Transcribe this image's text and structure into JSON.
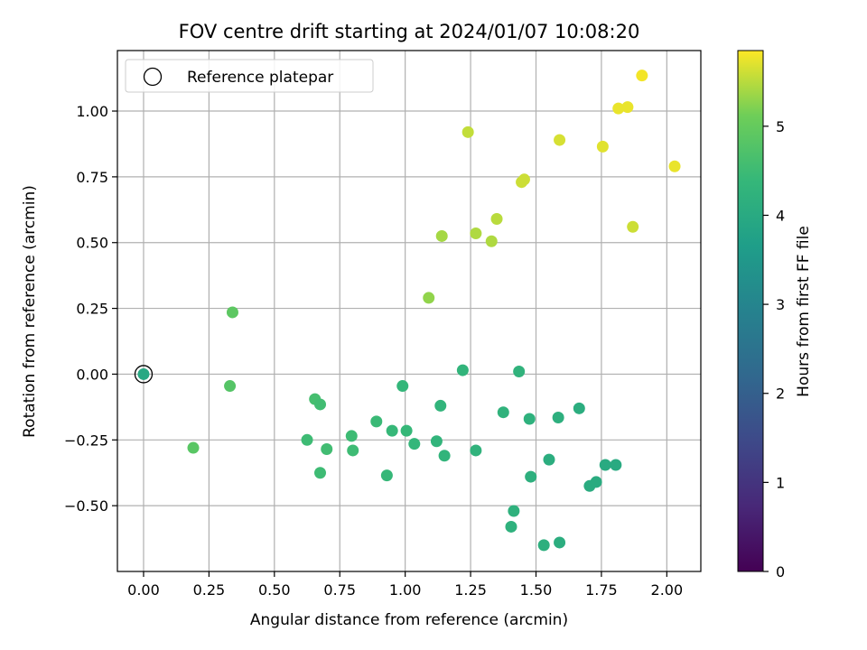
{
  "chart_data": {
    "type": "scatter",
    "title": "FOV centre drift starting at 2024/01/07 10:08:20",
    "xlabel": "Angular distance from reference (arcmin)",
    "ylabel": "Rotation from reference (arcmin)",
    "xlim": [
      -0.1,
      2.13
    ],
    "ylim": [
      -0.75,
      1.23
    ],
    "x_ticks": [
      "0.00",
      "0.25",
      "0.50",
      "0.75",
      "1.00",
      "1.25",
      "1.50",
      "1.75",
      "2.00"
    ],
    "x_tick_values": [
      0,
      0.25,
      0.5,
      0.75,
      1.0,
      1.25,
      1.5,
      1.75,
      2.0
    ],
    "y_ticks": [
      "1.00",
      "0.75",
      "0.50",
      "0.25",
      "0.00",
      "−0.25",
      "−0.50"
    ],
    "y_tick_values": [
      1.0,
      0.75,
      0.5,
      0.25,
      0.0,
      -0.25,
      -0.5
    ],
    "grid": true,
    "legend": {
      "position": "top-left",
      "entries": [
        "Reference platepar"
      ]
    },
    "reference_point": {
      "x": 0.0,
      "y": 0.0,
      "c": 3.95
    },
    "colorbar": {
      "label": "Hours from first FF file",
      "range": [
        0,
        5.85
      ],
      "ticks": [
        "0",
        "1",
        "2",
        "3",
        "4",
        "5"
      ],
      "tick_values": [
        0,
        1,
        2,
        3,
        4,
        5
      ],
      "colormap": "viridis",
      "colors": [
        "#440154",
        "#3b528b",
        "#21918c",
        "#5ec962",
        "#fde725"
      ]
    },
    "points": [
      {
        "x": 0.19,
        "y": -0.28,
        "c": 4.85
      },
      {
        "x": 0.33,
        "y": -0.045,
        "c": 4.8
      },
      {
        "x": 0.34,
        "y": 0.235,
        "c": 4.9
      },
      {
        "x": 0.625,
        "y": -0.25,
        "c": 4.5
      },
      {
        "x": 0.655,
        "y": -0.095,
        "c": 4.6
      },
      {
        "x": 0.675,
        "y": -0.115,
        "c": 4.55
      },
      {
        "x": 0.675,
        "y": -0.375,
        "c": 4.5
      },
      {
        "x": 0.7,
        "y": -0.285,
        "c": 4.55
      },
      {
        "x": 0.795,
        "y": -0.235,
        "c": 4.5
      },
      {
        "x": 0.8,
        "y": -0.29,
        "c": 4.5
      },
      {
        "x": 0.89,
        "y": -0.18,
        "c": 4.45
      },
      {
        "x": 0.93,
        "y": -0.385,
        "c": 4.4
      },
      {
        "x": 0.95,
        "y": -0.215,
        "c": 4.4
      },
      {
        "x": 0.99,
        "y": -0.045,
        "c": 4.35
      },
      {
        "x": 1.005,
        "y": -0.215,
        "c": 4.4
      },
      {
        "x": 1.035,
        "y": -0.265,
        "c": 4.35
      },
      {
        "x": 1.09,
        "y": 0.29,
        "c": 5.3
      },
      {
        "x": 1.12,
        "y": -0.255,
        "c": 4.3
      },
      {
        "x": 1.135,
        "y": -0.12,
        "c": 4.3
      },
      {
        "x": 1.14,
        "y": 0.525,
        "c": 5.4
      },
      {
        "x": 1.15,
        "y": -0.31,
        "c": 4.3
      },
      {
        "x": 1.22,
        "y": 0.015,
        "c": 4.3
      },
      {
        "x": 1.24,
        "y": 0.92,
        "c": 5.55
      },
      {
        "x": 1.27,
        "y": 0.535,
        "c": 5.45
      },
      {
        "x": 1.27,
        "y": -0.29,
        "c": 4.25
      },
      {
        "x": 1.33,
        "y": 0.505,
        "c": 5.45
      },
      {
        "x": 1.35,
        "y": 0.59,
        "c": 5.5
      },
      {
        "x": 1.375,
        "y": -0.145,
        "c": 4.25
      },
      {
        "x": 1.405,
        "y": -0.58,
        "c": 4.2
      },
      {
        "x": 1.415,
        "y": -0.52,
        "c": 4.2
      },
      {
        "x": 1.435,
        "y": 0.01,
        "c": 4.25
      },
      {
        "x": 1.445,
        "y": 0.73,
        "c": 5.6
      },
      {
        "x": 1.455,
        "y": 0.74,
        "c": 5.6
      },
      {
        "x": 1.475,
        "y": -0.17,
        "c": 4.2
      },
      {
        "x": 1.48,
        "y": -0.39,
        "c": 4.15
      },
      {
        "x": 1.53,
        "y": -0.65,
        "c": 4.15
      },
      {
        "x": 1.55,
        "y": -0.325,
        "c": 4.1
      },
      {
        "x": 1.585,
        "y": -0.165,
        "c": 4.15
      },
      {
        "x": 1.59,
        "y": 0.89,
        "c": 5.65
      },
      {
        "x": 1.59,
        "y": -0.64,
        "c": 4.1
      },
      {
        "x": 1.665,
        "y": -0.13,
        "c": 4.1
      },
      {
        "x": 1.705,
        "y": -0.425,
        "c": 4.05
      },
      {
        "x": 1.73,
        "y": -0.41,
        "c": 4.05
      },
      {
        "x": 1.755,
        "y": 0.865,
        "c": 5.7
      },
      {
        "x": 1.765,
        "y": -0.345,
        "c": 4.0
      },
      {
        "x": 1.805,
        "y": -0.345,
        "c": 4.0
      },
      {
        "x": 1.815,
        "y": 1.01,
        "c": 5.75
      },
      {
        "x": 1.85,
        "y": 1.015,
        "c": 5.75
      },
      {
        "x": 1.87,
        "y": 0.56,
        "c": 5.6
      },
      {
        "x": 1.905,
        "y": 1.135,
        "c": 5.8
      },
      {
        "x": 2.03,
        "y": 0.79,
        "c": 5.75
      }
    ]
  }
}
